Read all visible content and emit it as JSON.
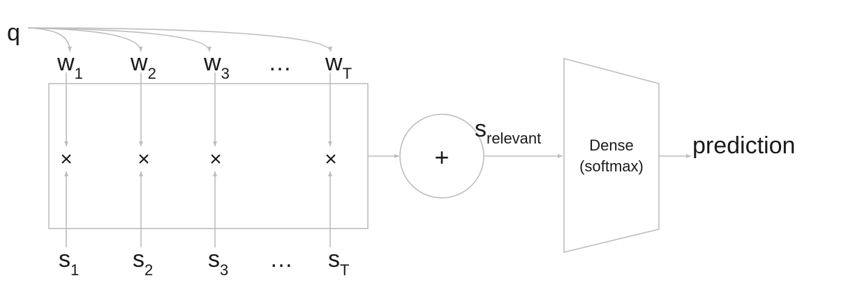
{
  "query": {
    "label": "q"
  },
  "weights": [
    {
      "base": "w",
      "sub": "1"
    },
    {
      "base": "w",
      "sub": "2"
    },
    {
      "base": "w",
      "sub": "3"
    },
    {
      "base": "w",
      "sub": "T"
    }
  ],
  "scores": [
    {
      "base": "s",
      "sub": "1"
    },
    {
      "base": "s",
      "sub": "2"
    },
    {
      "base": "s",
      "sub": "3"
    },
    {
      "base": "s",
      "sub": "T"
    }
  ],
  "ellipsis": "…",
  "multiply_symbol": "×",
  "sum": {
    "symbol": "+"
  },
  "relevant": {
    "base": "s",
    "sub": "relevant"
  },
  "dense": {
    "line1": "Dense",
    "line2": "(softmax)"
  },
  "output": {
    "label": "prediction"
  },
  "colors": {
    "line": "#bdbdbd",
    "text": "#1a1a1a"
  }
}
